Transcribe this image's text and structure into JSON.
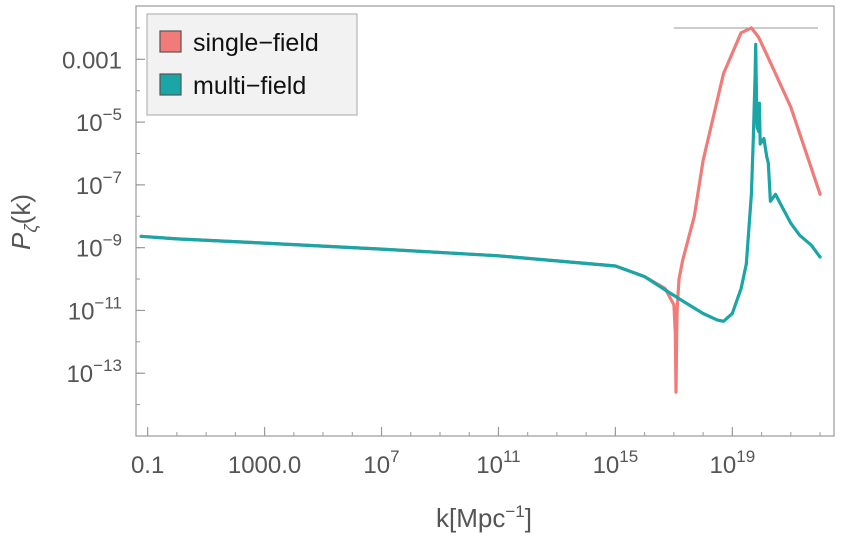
{
  "chart_data": {
    "type": "line",
    "title": "",
    "xlabel": "k[Mpc",
    "xlabel_sup": "−1",
    "xlabel_close": "]",
    "ylabel_main": "P",
    "ylabel_sub": "ζ",
    "ylabel_arg": "(k)",
    "xscale": "log",
    "yscale": "log",
    "xlim": [
      0.04,
      30000000000000000000000
    ],
    "ylim": [
      1e-15,
      0.05
    ],
    "grid": false,
    "legend_position": "top-left",
    "x_ticks": [
      {
        "value": 0.1,
        "label": "0.1"
      },
      {
        "value": 1000,
        "label": "1000.0"
      },
      {
        "value": 10000000,
        "label": "10",
        "exp": "7"
      },
      {
        "value": 100000000000,
        "label": "10",
        "exp": "11"
      },
      {
        "value": 1000000000000000,
        "label": "10",
        "exp": "15"
      },
      {
        "value": 10000000000000000000,
        "label": "10",
        "exp": "19"
      }
    ],
    "y_ticks": [
      {
        "value": 0.001,
        "label": "0.001"
      },
      {
        "value": 1e-05,
        "label": "10",
        "exp": "−5"
      },
      {
        "value": 1e-07,
        "label": "10",
        "exp": "−7"
      },
      {
        "value": 1e-09,
        "label": "10",
        "exp": "−9"
      },
      {
        "value": 1e-11,
        "label": "10",
        "exp": "−11"
      },
      {
        "value": 1e-13,
        "label": "10",
        "exp": "−13"
      }
    ],
    "reference_line_y": 0.01,
    "series": [
      {
        "name": "single−field",
        "color": "#f07b78",
        "x": [
          0.06,
          1,
          1000,
          10000000,
          100000000000,
          1000000000000000,
          10000000000000000,
          50000000000000000,
          100000000000000000,
          112000000000000000,
          118000000000000000,
          125000000000000000,
          130000000000000000,
          150000000000000000,
          200000000000000000,
          500000000000000000,
          1000000000000000000,
          5000000000000000000,
          20000000000000000000,
          45000000000000000000,
          80000000000000000000,
          200000000000000000000,
          1000000000000000000000,
          10000000000000000000000
        ],
        "y": [
          2.3e-09,
          1.9e-09,
          1.4e-09,
          9e-10,
          5.5e-10,
          2.6e-10,
          1.2e-10,
          5e-11,
          1.5e-11,
          2e-12,
          2.5e-14,
          2e-12,
          1.2e-11,
          1e-10,
          4e-10,
          1e-08,
          6e-07,
          0.00035,
          0.007,
          0.01,
          0.005,
          0.0008,
          3e-05,
          5e-08
        ]
      },
      {
        "name": "multi−field",
        "color": "#1aa5a6",
        "x": [
          0.06,
          1,
          1000,
          10000000,
          100000000000,
          1000000000000000,
          10000000000000000,
          50000000000000000,
          200000000000000000,
          1000000000000000000,
          3000000000000000000,
          5000000000000000000,
          10000000000000000000,
          20000000000000000000,
          30000000000000000000,
          45000000000000000000,
          52000000000000000000,
          60000000000000000000,
          63000000000000000000,
          68000000000000000000,
          70000000000000000000,
          80000000000000000000,
          84000000000000000000,
          90000000000000000000,
          120000000000000000000,
          150000000000000000000,
          170000000000000000000,
          200000000000000000000,
          300000000000000000000,
          500000000000000000000,
          1000000000000000000000,
          2000000000000000000000,
          5000000000000000000000,
          10000000000000000000000
        ],
        "y": [
          2.3e-09,
          1.9e-09,
          1.4e-09,
          9e-10,
          5.5e-10,
          2.6e-10,
          1.2e-10,
          4.5e-11,
          2e-11,
          8e-12,
          5e-12,
          4.5e-12,
          8e-12,
          5e-11,
          3e-10,
          5e-08,
          3e-06,
          0.0003,
          0.003,
          2e-05,
          7e-06,
          5e-06,
          4e-05,
          2e-06,
          3e-06,
          8e-07,
          5e-07,
          3e-08,
          5e-08,
          2e-08,
          6e-09,
          2.5e-09,
          1.2e-09,
          5e-10
        ]
      }
    ]
  }
}
